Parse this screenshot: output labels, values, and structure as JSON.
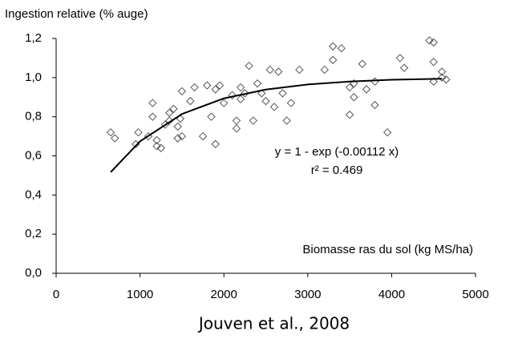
{
  "chart_data": {
    "type": "scatter",
    "title": "Ingestion relative (% auge)",
    "x_label": "Biomasse ras du sol (kg MS/ha)",
    "annotations": [
      "y = 1 - exp (-0.00112 x)",
      "r² = 0.469"
    ],
    "caption": "Jouven et al., 2008",
    "xlim": [
      0,
      5000
    ],
    "xticks": [
      0,
      1000,
      2000,
      3000,
      4000,
      5000
    ],
    "ylim": [
      0,
      1.2
    ],
    "yticks": [
      {
        "value": 0,
        "label": "0,0"
      },
      {
        "value": 0.2,
        "label": "0,2"
      },
      {
        "value": 0.4,
        "label": "0,4"
      },
      {
        "value": 0.6,
        "label": "0,6"
      },
      {
        "value": 0.8,
        "label": "0,8"
      },
      {
        "value": 1.0,
        "label": "1,0"
      },
      {
        "value": 1.2,
        "label": "1,2"
      }
    ],
    "marker_color": "#555555",
    "line_color": "#000000",
    "points": {
      "x": [
        650,
        700,
        950,
        980,
        1100,
        1150,
        1150,
        1200,
        1200,
        1250,
        1300,
        1350,
        1350,
        1400,
        1450,
        1450,
        1480,
        1500,
        1500,
        1600,
        1650,
        1750,
        1800,
        1850,
        1900,
        1900,
        1950,
        2000,
        2100,
        2150,
        2150,
        2200,
        2200,
        2250,
        2300,
        2350,
        2400,
        2450,
        2500,
        2550,
        2600,
        2650,
        2700,
        2750,
        2800,
        2900,
        3200,
        3300,
        3300,
        3400,
        3500,
        3500,
        3550,
        3550,
        3650,
        3700,
        3800,
        3800,
        3950,
        4100,
        4150,
        4450,
        4500,
        4500,
        4500,
        4600,
        4600,
        4650
      ],
      "values": [
        0.72,
        0.69,
        0.66,
        0.72,
        0.7,
        0.8,
        0.87,
        0.65,
        0.68,
        0.64,
        0.76,
        0.78,
        0.82,
        0.84,
        0.69,
        0.75,
        0.79,
        0.7,
        0.93,
        0.88,
        0.95,
        0.7,
        0.96,
        0.8,
        0.66,
        0.94,
        0.96,
        0.87,
        0.91,
        0.74,
        0.78,
        0.89,
        0.95,
        0.92,
        1.06,
        0.78,
        0.97,
        0.92,
        0.88,
        1.04,
        0.85,
        1.03,
        0.92,
        0.78,
        0.87,
        1.04,
        1.04,
        1.09,
        1.16,
        1.15,
        0.81,
        0.95,
        0.97,
        0.9,
        1.07,
        0.94,
        0.86,
        0.98,
        0.72,
        1.1,
        1.05,
        1.19,
        1.18,
        1.08,
        0.98,
        1.03,
        1.0,
        0.99
      ]
    },
    "fit": {
      "x": [
        650,
        1000,
        1500,
        2000,
        2500,
        3000,
        3500,
        4000,
        4600
      ],
      "values": [
        0.517,
        0.674,
        0.814,
        0.894,
        0.939,
        0.965,
        0.98,
        0.989,
        0.994
      ]
    }
  }
}
